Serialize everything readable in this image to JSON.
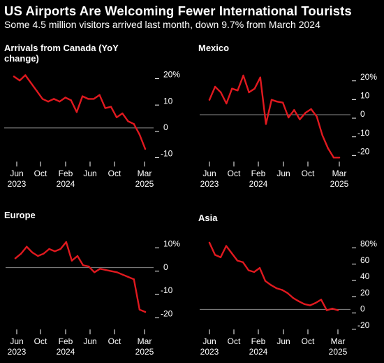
{
  "header": {
    "title": "US Airports Are Welcoming Fewer International Tourists",
    "subtitle": "Some 4.5 million visitors arrived last month, down 9.7% from March 2024"
  },
  "colors": {
    "background": "#000000",
    "line": "#e0191f",
    "zero_line": "#8a8a8a",
    "text": "#ffffff"
  },
  "chart_data": [
    {
      "type": "line",
      "title": "Arrivals from Canada (YoY change)",
      "x_ticks": [
        "Jun 2023",
        "Oct",
        "Feb 2024",
        "Jun",
        "Oct",
        "Mar 2025"
      ],
      "y_ticks": [
        "20%",
        "10",
        "0",
        "-10"
      ],
      "ylim": [
        -12,
        22
      ],
      "series": [
        {
          "x": [
            "2023-04",
            "2023-05",
            "2023-06",
            "2023-07",
            "2023-08",
            "2023-09",
            "2023-10",
            "2023-11",
            "2023-12",
            "2024-01",
            "2024-02",
            "2024-03",
            "2024-04",
            "2024-05",
            "2024-06",
            "2024-07",
            "2024-08",
            "2024-09",
            "2024-10",
            "2024-11",
            "2024-12",
            "2025-01",
            "2025-02",
            "2025-03"
          ],
          "values": [
            19.5,
            18.0,
            20.0,
            17.0,
            14.0,
            11.0,
            10.0,
            11.0,
            10.0,
            11.5,
            10.5,
            6.0,
            12.0,
            11.0,
            11.0,
            12.5,
            7.5,
            8.0,
            4.0,
            5.5,
            2.5,
            1.5,
            -2.5,
            -8.0
          ]
        }
      ]
    },
    {
      "type": "line",
      "title": "Mexico",
      "x_ticks": [
        "Jun 2023",
        "Oct",
        "Feb 2024",
        "Jun",
        "Oct",
        "Mar 2025"
      ],
      "y_ticks": [
        "20%",
        "10",
        "0",
        "-10",
        "-20"
      ],
      "ylim": [
        -24,
        24
      ],
      "series": [
        {
          "x": [
            "2023-04",
            "2023-05",
            "2023-06",
            "2023-07",
            "2023-08",
            "2023-09",
            "2023-10",
            "2023-11",
            "2023-12",
            "2024-01",
            "2024-02",
            "2024-03",
            "2024-04",
            "2024-05",
            "2024-06",
            "2024-07",
            "2024-08",
            "2024-09",
            "2024-10",
            "2024-11",
            "2024-12",
            "2025-01",
            "2025-02",
            "2025-03"
          ],
          "values": [
            8.0,
            15.0,
            12.0,
            6.0,
            14.0,
            13.0,
            21.0,
            12.0,
            14.0,
            20.0,
            -5.0,
            8.0,
            7.0,
            6.5,
            -1.5,
            2.5,
            -2.5,
            1.0,
            3.0,
            -1.0,
            -11.0,
            -18.0,
            -23.0,
            -23.0
          ]
        }
      ]
    },
    {
      "type": "line",
      "title": "Europe",
      "x_ticks": [
        "Jun 2023",
        "Oct",
        "Feb 2024",
        "Jun",
        "Oct",
        "Mar 2025"
      ],
      "y_ticks": [
        "10%",
        "0",
        "-10",
        "-20"
      ],
      "ylim": [
        -25,
        14
      ],
      "series": [
        {
          "x": [
            "2023-04",
            "2023-05",
            "2023-06",
            "2023-07",
            "2023-08",
            "2023-09",
            "2023-10",
            "2023-11",
            "2023-12",
            "2024-01",
            "2024-02",
            "2024-03",
            "2024-04",
            "2024-05",
            "2024-06",
            "2024-07",
            "2024-08",
            "2024-09",
            "2024-10",
            "2024-11",
            "2024-12",
            "2025-01",
            "2025-02",
            "2025-03"
          ],
          "values": [
            4.0,
            6.0,
            9.0,
            6.5,
            5.0,
            6.0,
            8.0,
            7.0,
            8.0,
            11.0,
            3.0,
            5.0,
            1.0,
            0.5,
            -2.0,
            -0.5,
            -1.0,
            -1.5,
            -2.0,
            -3.0,
            -4.0,
            -5.0,
            -18.0,
            -19.0
          ]
        }
      ]
    },
    {
      "type": "line",
      "title": "Asia",
      "x_ticks": [
        "Jun 2023",
        "Oct",
        "Feb 2024",
        "Jun",
        "Oct",
        "Mar 2025"
      ],
      "y_ticks": [
        "80%",
        "60",
        "40",
        "20",
        "0",
        "-20"
      ],
      "ylim": [
        -22,
        88
      ],
      "series": [
        {
          "x": [
            "2023-04",
            "2023-05",
            "2023-06",
            "2023-07",
            "2023-08",
            "2023-09",
            "2023-10",
            "2023-11",
            "2023-12",
            "2024-01",
            "2024-02",
            "2024-03",
            "2024-04",
            "2024-05",
            "2024-06",
            "2024-07",
            "2024-08",
            "2024-09",
            "2024-10",
            "2024-11",
            "2024-12",
            "2025-01",
            "2025-02",
            "2025-03"
          ],
          "values": [
            82.0,
            67.0,
            64.0,
            78.0,
            69.0,
            60.0,
            58.0,
            48.0,
            46.0,
            51.0,
            35.0,
            30.0,
            26.0,
            24.0,
            20.0,
            14.0,
            10.0,
            6.5,
            5.0,
            8.0,
            12.0,
            -1.0,
            1.0,
            -1.0
          ]
        }
      ]
    }
  ]
}
